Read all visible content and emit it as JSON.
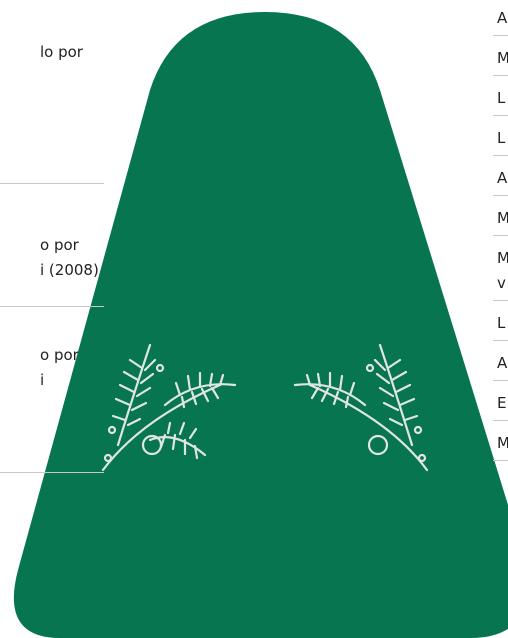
{
  "left_items": [
    {
      "lines": [
        "lo por"
      ]
    },
    {
      "lines": [
        "o por",
        "i (2008)"
      ]
    },
    {
      "lines": [
        "o por",
        "i"
      ]
    }
  ],
  "right_items": [
    {
      "lines": [
        "A"
      ]
    },
    {
      "lines": [
        "M"
      ]
    },
    {
      "lines": [
        "L"
      ]
    },
    {
      "lines": [
        "L"
      ]
    },
    {
      "lines": [
        "A"
      ]
    },
    {
      "lines": [
        "M"
      ]
    },
    {
      "lines": [
        "M",
        "v"
      ]
    },
    {
      "lines": [
        "L"
      ]
    },
    {
      "lines": [
        "A"
      ]
    },
    {
      "lines": [
        "E"
      ]
    },
    {
      "lines": [
        "M"
      ]
    }
  ]
}
